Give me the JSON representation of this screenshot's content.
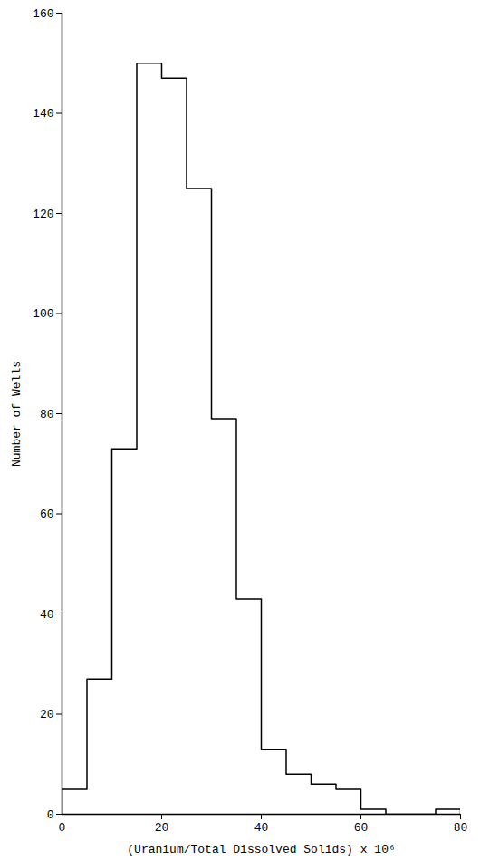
{
  "chart_data": {
    "type": "histogram",
    "x_label": "(Uranium/Total Dissolved Solids) x 10⁶",
    "y_label": "Number of Wells",
    "bins": [
      0,
      5,
      10,
      15,
      20,
      25,
      30,
      35,
      40,
      45,
      50,
      55,
      60,
      65,
      70,
      75,
      80
    ],
    "values": [
      5,
      27,
      73,
      150,
      147,
      125,
      79,
      43,
      13,
      8,
      6,
      5,
      1,
      0,
      0,
      1
    ],
    "color": "#000000",
    "xlim": [
      0,
      80
    ],
    "xticks": [
      0,
      20,
      40,
      60,
      80
    ],
    "ylim": [
      0,
      160
    ],
    "yticks": [
      0,
      20,
      40,
      60,
      80,
      100,
      120,
      140,
      160
    ],
    "grid": false
  }
}
